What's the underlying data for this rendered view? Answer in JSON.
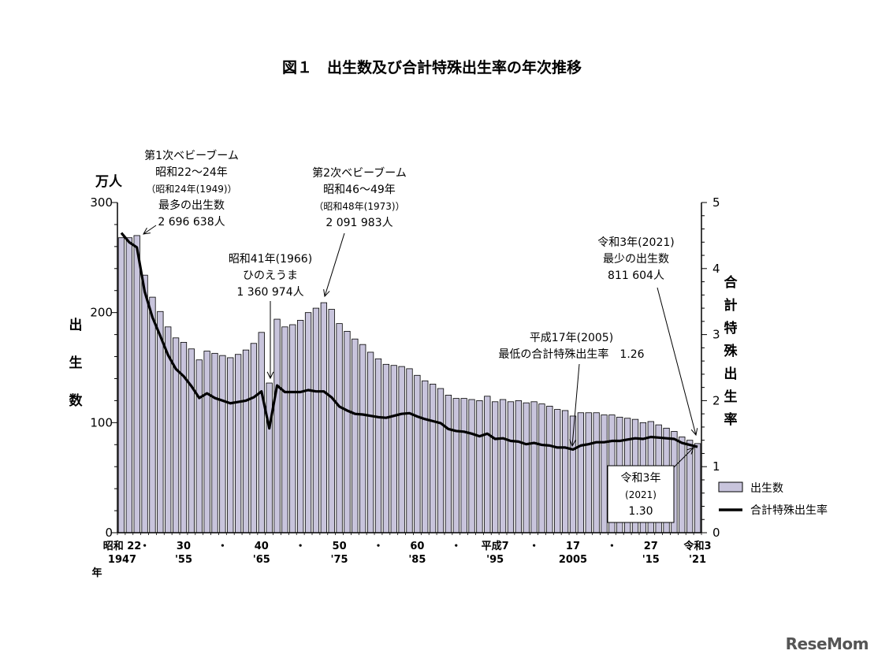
{
  "chart_data": {
    "type": "bar",
    "title": "図１　出生数及び合計特殊出生率の年次推移",
    "y_left_unit": "万人",
    "y_left_label": "出生数",
    "y_right_label": "合計特殊出生率",
    "ylim_left": [
      0,
      300
    ],
    "ylim_right": [
      0,
      5
    ],
    "y_left_ticks": [
      "0",
      "100",
      "200",
      "300"
    ],
    "y_right_ticks": [
      "0",
      "1",
      "2",
      "3",
      "4",
      "5"
    ],
    "years": [
      1947,
      1948,
      1949,
      1950,
      1951,
      1952,
      1953,
      1954,
      1955,
      1956,
      1957,
      1958,
      1959,
      1960,
      1961,
      1962,
      1963,
      1964,
      1965,
      1966,
      1967,
      1968,
      1969,
      1970,
      1971,
      1972,
      1973,
      1974,
      1975,
      1976,
      1977,
      1978,
      1979,
      1980,
      1981,
      1982,
      1983,
      1984,
      1985,
      1986,
      1987,
      1988,
      1989,
      1990,
      1991,
      1992,
      1993,
      1994,
      1995,
      1996,
      1997,
      1998,
      1999,
      2000,
      2001,
      2002,
      2003,
      2004,
      2005,
      2006,
      2007,
      2008,
      2009,
      2010,
      2011,
      2012,
      2013,
      2014,
      2015,
      2016,
      2017,
      2018,
      2019,
      2020,
      2021
    ],
    "series": [
      {
        "name": "出生数",
        "axis": "left",
        "values": [
          268,
          268,
          270,
          234,
          214,
          201,
          187,
          177,
          173,
          167,
          157,
          165,
          163,
          161,
          159,
          162,
          166,
          172,
          182,
          136,
          194,
          187,
          189,
          193,
          200,
          204,
          209,
          203,
          190,
          183,
          176,
          171,
          164,
          158,
          153,
          152,
          151,
          149,
          143,
          138,
          135,
          131,
          125,
          122,
          122,
          121,
          120,
          124,
          119,
          121,
          119,
          120,
          118,
          119,
          117,
          115,
          112,
          111,
          106,
          109,
          109,
          109,
          107,
          107,
          105,
          104,
          103,
          100,
          101,
          98,
          95,
          92,
          87,
          84,
          81
        ]
      },
      {
        "name": "合計特殊出生率",
        "axis": "right",
        "values": [
          4.54,
          4.4,
          4.32,
          3.65,
          3.26,
          2.98,
          2.69,
          2.48,
          2.37,
          2.22,
          2.04,
          2.11,
          2.04,
          2.0,
          1.96,
          1.98,
          2.0,
          2.05,
          2.14,
          1.58,
          2.23,
          2.13,
          2.13,
          2.13,
          2.16,
          2.14,
          2.14,
          2.05,
          1.91,
          1.85,
          1.8,
          1.79,
          1.77,
          1.75,
          1.74,
          1.77,
          1.8,
          1.81,
          1.76,
          1.72,
          1.69,
          1.66,
          1.57,
          1.54,
          1.53,
          1.5,
          1.46,
          1.5,
          1.42,
          1.43,
          1.39,
          1.38,
          1.34,
          1.36,
          1.33,
          1.32,
          1.29,
          1.29,
          1.26,
          1.32,
          1.34,
          1.37,
          1.37,
          1.39,
          1.39,
          1.41,
          1.43,
          1.42,
          1.45,
          1.44,
          1.43,
          1.42,
          1.36,
          1.33,
          1.3
        ]
      }
    ],
    "x_tick_labels": [
      {
        "year": 1947,
        "top": "昭和 22",
        "bottom": "1947"
      },
      {
        "year": 1950,
        "top": "・",
        "bottom": ""
      },
      {
        "year": 1955,
        "top": "30",
        "bottom": "'55"
      },
      {
        "year": 1960,
        "top": "・",
        "bottom": ""
      },
      {
        "year": 1965,
        "top": "40",
        "bottom": "'65"
      },
      {
        "year": 1970,
        "top": "・",
        "bottom": ""
      },
      {
        "year": 1975,
        "top": "50",
        "bottom": "'75"
      },
      {
        "year": 1980,
        "top": "・",
        "bottom": ""
      },
      {
        "year": 1985,
        "top": "60",
        "bottom": "'85"
      },
      {
        "year": 1990,
        "top": "・",
        "bottom": ""
      },
      {
        "year": 1995,
        "top": "平成7",
        "bottom": "'95"
      },
      {
        "year": 2000,
        "top": "・",
        "bottom": ""
      },
      {
        "year": 2005,
        "top": "17",
        "bottom": "2005"
      },
      {
        "year": 2010,
        "top": "・",
        "bottom": ""
      },
      {
        "year": 2015,
        "top": "27",
        "bottom": "'15"
      },
      {
        "year": 2021,
        "top": "令和3",
        "bottom": "'21"
      }
    ],
    "x_unit_label": "年",
    "legend": {
      "placement": "bottom-right",
      "bar_label": "出生数",
      "line_label": "合計特殊出生率"
    },
    "annotations": [
      {
        "id": "boom1",
        "lines": [
          "第1次ベビーブーム",
          "昭和22～24年",
          "（昭和24年(1949)）",
          "最多の出生数",
          "2 696 638人"
        ]
      },
      {
        "id": "hinoe",
        "lines": [
          "昭和41年(1966)",
          "ひのえうま",
          "1 360 974人"
        ]
      },
      {
        "id": "boom2",
        "lines": [
          "第2次ベビーブーム",
          "昭和46～49年",
          "（昭和48年(1973)）",
          "2 091 983人"
        ]
      },
      {
        "id": "low2005",
        "lines": [
          "平成17年(2005)",
          "最低の合計特殊出生率　1.26"
        ]
      },
      {
        "id": "min2021",
        "lines": [
          "令和3年(2021)",
          "最少の出生数",
          "811 604人"
        ]
      },
      {
        "id": "box2021",
        "lines": [
          "令和3年",
          "(2021)",
          "1.30"
        ]
      }
    ],
    "colors": {
      "bar_fill": "#c8c4dc",
      "bar_stroke": "#000000",
      "line": "#000000"
    }
  },
  "logo_text": "ReseMom"
}
